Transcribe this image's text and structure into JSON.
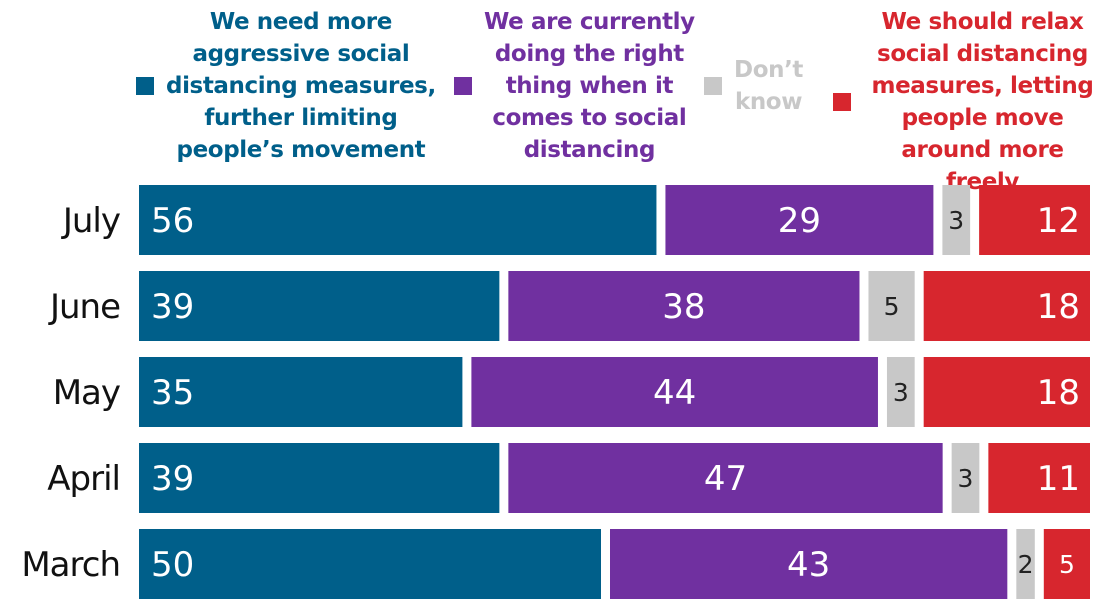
{
  "chart_data": {
    "type": "bar",
    "orientation": "horizontal",
    "stacked": true,
    "categories": [
      "July",
      "June",
      "May",
      "April",
      "March"
    ],
    "series": [
      {
        "name": "We need more\naggressive social\ndistancing measures,\nfurther limiting\npeople’s movement",
        "color": "#005F8A",
        "label_color": "#ffffff",
        "label_align": "left",
        "values": [
          56,
          39,
          35,
          39,
          50
        ]
      },
      {
        "name": "We are currently\ndoing the right\nthing when it\ncomes to social\ndistancing",
        "color": "#7030A0",
        "label_color": "#ffffff",
        "label_align": "center",
        "values": [
          29,
          38,
          44,
          47,
          43
        ]
      },
      {
        "name": "Don’t\nknow",
        "color": "#C8C8C8",
        "label_color": "#333333",
        "label_align": "center",
        "values": [
          3,
          5,
          3,
          3,
          2
        ]
      },
      {
        "name": "We should relax\nsocial distancing\nmeasures, letting\npeople move\naround more freely",
        "color": "#D7262E",
        "label_color": "#ffffff",
        "label_align": "right",
        "values": [
          12,
          18,
          18,
          11,
          5
        ]
      }
    ],
    "legend_text_colors": [
      "#005F8A",
      "#7030A0",
      "#C8C8C8",
      "#D7262E"
    ],
    "xlim": [
      0,
      100
    ],
    "grid": false,
    "legend_position": "top"
  }
}
